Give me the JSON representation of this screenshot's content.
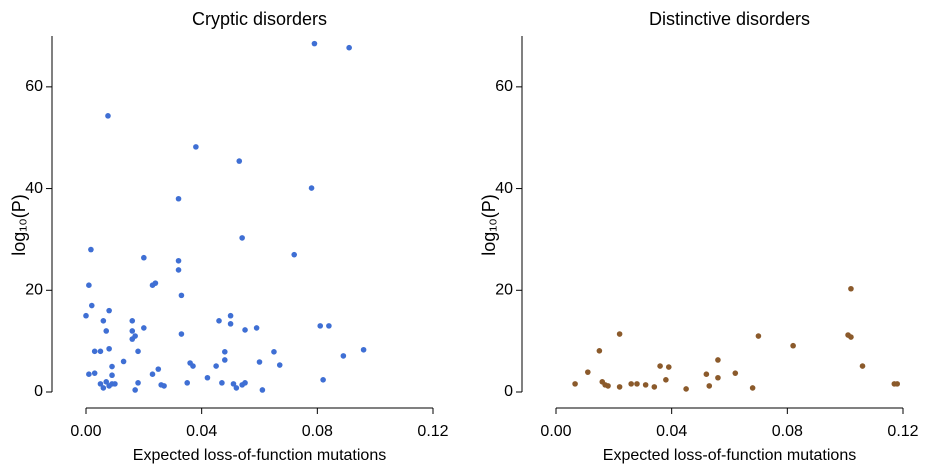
{
  "chart_data": [
    {
      "type": "scatter",
      "title": "Cryptic disorders",
      "xlabel": "Expected loss-of-function mutations",
      "ylabel": "log₁₀(P)",
      "color": "#3f6fd4",
      "xlim": [
        0,
        0.12
      ],
      "ylim": [
        0,
        70
      ],
      "xticks": [
        {
          "value": 0,
          "label": "0.00"
        },
        0.04,
        0.08,
        0.12
      ],
      "yticks": [
        0,
        20,
        40,
        60
      ],
      "x": [
        0.0,
        0.0017,
        0.001,
        0.002,
        0.003,
        0.005,
        0.001,
        0.003,
        0.006,
        0.008,
        0.007,
        0.008,
        0.009,
        0.009,
        0.005,
        0.006,
        0.007,
        0.008,
        0.009,
        0.0076,
        0.01,
        0.013,
        0.016,
        0.016,
        0.016,
        0.017,
        0.018,
        0.017,
        0.018,
        0.02,
        0.02,
        0.023,
        0.024,
        0.023,
        0.025,
        0.026,
        0.027,
        0.032,
        0.032,
        0.032,
        0.033,
        0.033,
        0.036,
        0.037,
        0.035,
        0.038,
        0.042,
        0.045,
        0.046,
        0.05,
        0.05,
        0.048,
        0.047,
        0.048,
        0.051,
        0.052,
        0.054,
        0.055,
        0.053,
        0.054,
        0.055,
        0.059,
        0.06,
        0.061,
        0.065,
        0.067,
        0.072,
        0.078,
        0.079,
        0.081,
        0.084,
        0.082,
        0.089,
        0.091,
        0.096
      ],
      "values": [
        15,
        28,
        21,
        17,
        8,
        8,
        3.5,
        3.7,
        14,
        16,
        12,
        8.5,
        5,
        3.3,
        1.6,
        0.8,
        2,
        1.2,
        1.6,
        54.3,
        1.6,
        6,
        14,
        12,
        10.4,
        11,
        1.8,
        0.4,
        8,
        12.6,
        26.4,
        21,
        21.4,
        3.5,
        4.5,
        1.4,
        1.2,
        24,
        25.8,
        38,
        19,
        11.4,
        5.7,
        5.1,
        1.8,
        48.2,
        2.8,
        5.1,
        14,
        15,
        13.4,
        7.9,
        1.8,
        6.3,
        1.6,
        0.8,
        1.4,
        1.8,
        45.4,
        30.3,
        12.2,
        12.6,
        5.9,
        0.4,
        7.9,
        5.3,
        27,
        40.1,
        68.5,
        13,
        13,
        2.4,
        7.1,
        67.7,
        8.3
      ]
    },
    {
      "type": "scatter",
      "title": "Distinctive disorders",
      "xlabel": "Expected loss-of-function mutations",
      "ylabel": "log₁₀(P)",
      "color": "#8b5a2b",
      "xlim": [
        0,
        0.12
      ],
      "ylim": [
        0,
        70
      ],
      "xticks": [
        {
          "value": 0,
          "label": "0.00"
        },
        0.04,
        0.08,
        0.12
      ],
      "yticks": [
        0,
        20,
        40,
        60
      ],
      "x": [
        0.0066,
        0.011,
        0.015,
        0.016,
        0.017,
        0.018,
        0.022,
        0.022,
        0.026,
        0.028,
        0.031,
        0.034,
        0.036,
        0.038,
        0.039,
        0.045,
        0.052,
        0.053,
        0.056,
        0.056,
        0.062,
        0.068,
        0.07,
        0.082,
        0.101,
        0.102,
        0.102,
        0.106,
        0.117,
        0.118
      ],
      "values": [
        1.6,
        3.9,
        8.1,
        2,
        1.4,
        1.2,
        11.4,
        1,
        1.6,
        1.6,
        1.4,
        1,
        5.1,
        2.4,
        4.9,
        0.6,
        3.5,
        1.2,
        6.3,
        2.8,
        3.7,
        0.8,
        11,
        9.1,
        11.2,
        10.8,
        20.3,
        5.1,
        1.6,
        1.6
      ]
    }
  ]
}
